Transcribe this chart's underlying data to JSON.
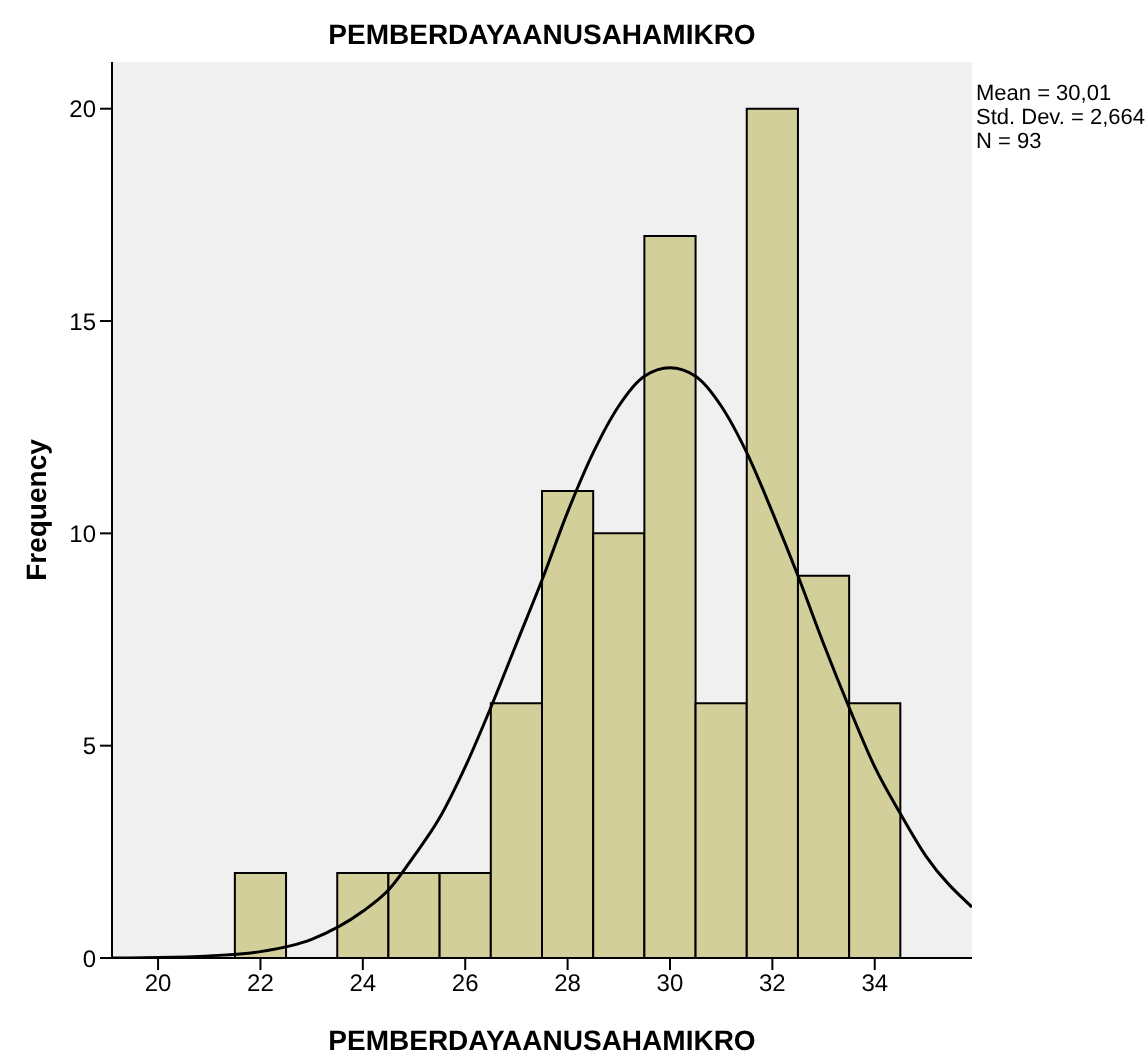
{
  "chart_data": {
    "type": "histogram",
    "title": "PEMBERDAYAANUSAHAMIKRO",
    "xlabel": "PEMBERDAYAANUSAHAMIKRO",
    "ylabel": "Frequency",
    "annotations": [
      "Mean = 30,01",
      "Std. Dev. = 2,664",
      "N = 93"
    ],
    "series": [
      {
        "bins": [
          21.5,
          22.5,
          23.5,
          24.5,
          25.5,
          26.5,
          27.5,
          28.5,
          29.5,
          30.5,
          31.5,
          32.5,
          33.5,
          34.5
        ],
        "values": [
          2,
          0,
          2,
          2,
          2,
          6,
          11,
          10,
          17,
          6,
          20,
          9,
          6
        ],
        "color": "#d3cf9b"
      },
      {
        "type": "line",
        "x": [
          19.1,
          20,
          21,
          22,
          23,
          24,
          24.5,
          25,
          25.5,
          26,
          26.5,
          27,
          27.5,
          28,
          28.5,
          29,
          29.5,
          30,
          30.5,
          31,
          31.5,
          32,
          32.5,
          33,
          33.5,
          34,
          34.5,
          35,
          35.9
        ],
        "values": [
          0.0,
          0.01,
          0.05,
          0.15,
          0.44,
          1.1,
          1.6,
          2.4,
          3.3,
          4.5,
          5.9,
          7.4,
          8.9,
          10.5,
          11.9,
          13.0,
          13.7,
          13.9,
          13.7,
          13.0,
          11.9,
          10.5,
          9.0,
          7.4,
          5.9,
          4.5,
          3.4,
          2.4,
          1.2
        ],
        "color": "#000000"
      }
    ],
    "xlim": [
      19.1,
      35.9
    ],
    "xticks": [
      20,
      22,
      24,
      26,
      28,
      30,
      32,
      34
    ],
    "ylim": [
      0,
      21.1
    ],
    "yticks": [
      0,
      5,
      10,
      15,
      20
    ],
    "grid": false,
    "marker": "none",
    "line_style": "solid"
  }
}
